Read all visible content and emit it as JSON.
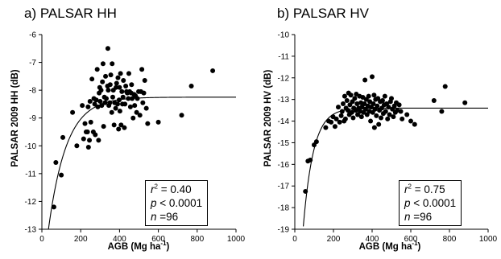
{
  "chart_data": [
    {
      "type": "scatter",
      "panel_label": "a) PALSAR HH",
      "ylabel": "PALSAR 2009 HH (dB)",
      "xlabel": "AGB (Mg ha",
      "xlabel_sup": "-1",
      "xlabel_end": ")",
      "xlim": [
        0,
        1000
      ],
      "ylim": [
        -13,
        -6
      ],
      "xticks": [
        0,
        200,
        400,
        600,
        800,
        1000
      ],
      "yticks": [
        -13,
        -12,
        -11,
        -10,
        -9,
        -8,
        -7,
        -6
      ],
      "grid": false,
      "stats": {
        "r2_label": "r",
        "r2_sup": "2",
        "r2_value": " = 0.40",
        "p_label": "p",
        "p_value": " < 0.0001",
        "n_label": "n",
        "n_value": " =96"
      },
      "fit_curve": {
        "asymptote": -8.25,
        "start": -13.2,
        "x0": 30,
        "rate": 0.0108
      },
      "points": [
        [
          62,
          -12.2
        ],
        [
          72,
          -10.6
        ],
        [
          100,
          -11.05
        ],
        [
          108,
          -9.7
        ],
        [
          158,
          -8.8
        ],
        [
          180,
          -10.0
        ],
        [
          208,
          -8.55
        ],
        [
          215,
          -9.75
        ],
        [
          222,
          -9.2
        ],
        [
          228,
          -9.5
        ],
        [
          235,
          -9.5
        ],
        [
          238,
          -8.6
        ],
        [
          240,
          -10.05
        ],
        [
          245,
          -9.8
        ],
        [
          248,
          -8.4
        ],
        [
          252,
          -9.15
        ],
        [
          258,
          -7.6
        ],
        [
          265,
          -9.5
        ],
        [
          268,
          -8.3
        ],
        [
          272,
          -8.5
        ],
        [
          275,
          -9.6
        ],
        [
          280,
          -8.35
        ],
        [
          285,
          -7.25
        ],
        [
          288,
          -8.6
        ],
        [
          292,
          -9.8
        ],
        [
          295,
          -8.1
        ],
        [
          298,
          -7.9
        ],
        [
          300,
          -8.4
        ],
        [
          305,
          -8.0
        ],
        [
          308,
          -8.55
        ],
        [
          312,
          -7.7
        ],
        [
          315,
          -7.05
        ],
        [
          318,
          -9.3
        ],
        [
          322,
          -8.25
        ],
        [
          325,
          -8.45
        ],
        [
          328,
          -7.5
        ],
        [
          332,
          -8.3
        ],
        [
          338,
          -7.85
        ],
        [
          340,
          -6.5
        ],
        [
          342,
          -8.0
        ],
        [
          345,
          -8.55
        ],
        [
          350,
          -8.45
        ],
        [
          352,
          -7.8
        ],
        [
          355,
          -7.45
        ],
        [
          360,
          -8.8
        ],
        [
          362,
          -7.05
        ],
        [
          365,
          -8.25
        ],
        [
          368,
          -8.0
        ],
        [
          372,
          -9.25
        ],
        [
          375,
          -8.45
        ],
        [
          380,
          -8.65
        ],
        [
          382,
          -7.9
        ],
        [
          385,
          -7.75
        ],
        [
          390,
          -8.5
        ],
        [
          392,
          -7.55
        ],
        [
          395,
          -9.4
        ],
        [
          398,
          -8.35
        ],
        [
          400,
          -7.9
        ],
        [
          402,
          -8.75
        ],
        [
          405,
          -7.4
        ],
        [
          408,
          -9.25
        ],
        [
          412,
          -8.05
        ],
        [
          415,
          -8.5
        ],
        [
          418,
          -8.25
        ],
        [
          420,
          -7.65
        ],
        [
          425,
          -9.35
        ],
        [
          428,
          -8.5
        ],
        [
          432,
          -7.85
        ],
        [
          436,
          -8.05
        ],
        [
          440,
          -8.1
        ],
        [
          445,
          -8.3
        ],
        [
          448,
          -7.4
        ],
        [
          452,
          -8.05
        ],
        [
          456,
          -8.6
        ],
        [
          460,
          -8.1
        ],
        [
          462,
          -7.8
        ],
        [
          465,
          -8.3
        ],
        [
          470,
          -9.0
        ],
        [
          475,
          -8.15
        ],
        [
          478,
          -8.55
        ],
        [
          482,
          -8.2
        ],
        [
          488,
          -8.8
        ],
        [
          492,
          -8.3
        ],
        [
          498,
          -8.05
        ],
        [
          505,
          -8.9
        ],
        [
          510,
          -8.05
        ],
        [
          515,
          -7.25
        ],
        [
          520,
          -8.45
        ],
        [
          525,
          -8.1
        ],
        [
          530,
          -7.65
        ],
        [
          538,
          -8.65
        ],
        [
          545,
          -9.2
        ],
        [
          600,
          -9.15
        ],
        [
          720,
          -8.9
        ],
        [
          770,
          -7.85
        ],
        [
          880,
          -7.3
        ]
      ]
    },
    {
      "type": "scatter",
      "panel_label": "b) PALSAR HV",
      "ylabel": "PALSAR 2009 HV (dB)",
      "xlabel": "AGB (Mg ha",
      "xlabel_sup": "-1",
      "xlabel_end": ")",
      "xlim": [
        0,
        1000
      ],
      "ylim": [
        -19,
        -10
      ],
      "xticks": [
        0,
        200,
        400,
        600,
        800,
        1000
      ],
      "yticks": [
        -19,
        -18,
        -17,
        -16,
        -15,
        -14,
        -13,
        -12,
        -11,
        -10
      ],
      "grid": false,
      "stats": {
        "r2_label": "r",
        "r2_sup": "2",
        "r2_value": " = 0.75",
        "p_label": "p",
        "p_value": " < 0.0001",
        "n_label": "n",
        "n_value": " =96"
      },
      "fit_curve": {
        "asymptote": -13.4,
        "start": -19.3,
        "x0": 40,
        "rate": 0.019
      },
      "points": [
        [
          55,
          -17.25
        ],
        [
          68,
          -15.85
        ],
        [
          80,
          -15.8
        ],
        [
          100,
          -15.1
        ],
        [
          112,
          -14.95
        ],
        [
          160,
          -14.3
        ],
        [
          175,
          -14.0
        ],
        [
          188,
          -14.05
        ],
        [
          198,
          -13.8
        ],
        [
          208,
          -14.25
        ],
        [
          215,
          -13.9
        ],
        [
          225,
          -13.35
        ],
        [
          232,
          -14.05
        ],
        [
          240,
          -13.75
        ],
        [
          245,
          -13.55
        ],
        [
          250,
          -13.2
        ],
        [
          255,
          -14.0
        ],
        [
          258,
          -12.85
        ],
        [
          262,
          -13.9
        ],
        [
          265,
          -13.4
        ],
        [
          270,
          -13.05
        ],
        [
          275,
          -13.5
        ],
        [
          278,
          -12.7
        ],
        [
          282,
          -13.7
        ],
        [
          285,
          -13.25
        ],
        [
          290,
          -12.8
        ],
        [
          295,
          -13.6
        ],
        [
          298,
          -13.1
        ],
        [
          302,
          -13.85
        ],
        [
          305,
          -13.4
        ],
        [
          310,
          -12.95
        ],
        [
          315,
          -13.5
        ],
        [
          318,
          -12.75
        ],
        [
          322,
          -13.2
        ],
        [
          325,
          -13.7
        ],
        [
          330,
          -13.4
        ],
        [
          335,
          -12.85
        ],
        [
          338,
          -13.55
        ],
        [
          342,
          -13.15
        ],
        [
          345,
          -13.8
        ],
        [
          348,
          -13.35
        ],
        [
          352,
          -12.9
        ],
        [
          356,
          -13.6
        ],
        [
          360,
          -13.2
        ],
        [
          363,
          -12.1
        ],
        [
          366,
          -13.45
        ],
        [
          370,
          -13.0
        ],
        [
          374,
          -13.7
        ],
        [
          378,
          -13.3
        ],
        [
          382,
          -12.85
        ],
        [
          385,
          -13.55
        ],
        [
          388,
          -13.1
        ],
        [
          392,
          -14.0
        ],
        [
          396,
          -13.35
        ],
        [
          400,
          -11.95
        ],
        [
          403,
          -13.6
        ],
        [
          406,
          -13.2
        ],
        [
          410,
          -12.8
        ],
        [
          412,
          -14.3
        ],
        [
          415,
          -13.45
        ],
        [
          418,
          -13.0
        ],
        [
          422,
          -13.75
        ],
        [
          426,
          -13.3
        ],
        [
          430,
          -12.95
        ],
        [
          434,
          -14.15
        ],
        [
          438,
          -13.5
        ],
        [
          442,
          -13.1
        ],
        [
          446,
          -13.85
        ],
        [
          450,
          -13.4
        ],
        [
          454,
          -13.05
        ],
        [
          458,
          -13.65
        ],
        [
          462,
          -13.25
        ],
        [
          466,
          -12.85
        ],
        [
          470,
          -13.55
        ],
        [
          475,
          -13.2
        ],
        [
          480,
          -13.9
        ],
        [
          485,
          -13.35
        ],
        [
          490,
          -13.7
        ],
        [
          495,
          -13.1
        ],
        [
          500,
          -12.95
        ],
        [
          505,
          -13.45
        ],
        [
          510,
          -13.8
        ],
        [
          515,
          -13.3
        ],
        [
          520,
          -13.6
        ],
        [
          525,
          -13.15
        ],
        [
          530,
          -13.5
        ],
        [
          540,
          -13.25
        ],
        [
          548,
          -13.55
        ],
        [
          555,
          -13.9
        ],
        [
          580,
          -13.7
        ],
        [
          600,
          -14.0
        ],
        [
          620,
          -14.15
        ],
        [
          720,
          -13.05
        ],
        [
          760,
          -13.55
        ],
        [
          778,
          -12.4
        ],
        [
          880,
          -13.15
        ]
      ]
    }
  ]
}
